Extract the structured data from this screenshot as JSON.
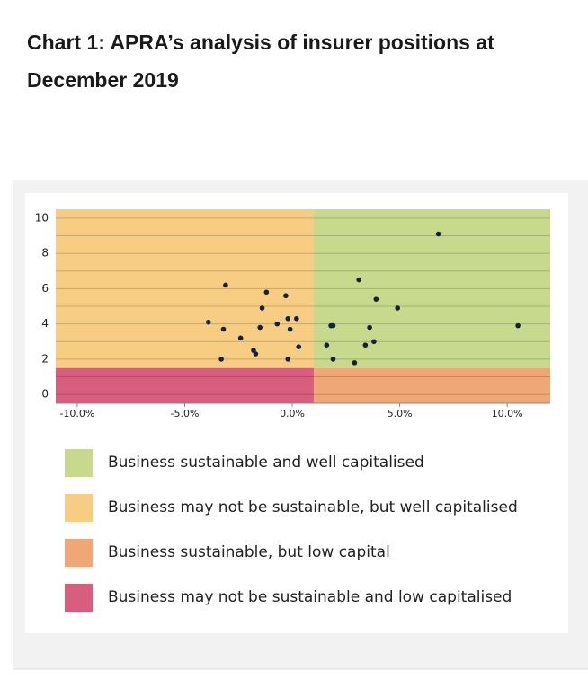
{
  "chart_data": {
    "type": "scatter",
    "title": "Chart 1: APRA’s analysis of insurer positions at December 2019",
    "x": [
      -3.1,
      -3.9,
      -3.2,
      -3.3,
      -2.4,
      -1.2,
      -1.4,
      -1.5,
      -1.8,
      -1.7,
      -0.7,
      -0.3,
      -0.2,
      -0.1,
      0.2,
      -0.2,
      0.3,
      3.1,
      3.9,
      4.9,
      1.8,
      1.9,
      3.6,
      3.8,
      3.4,
      1.6,
      1.9,
      2.9,
      6.8,
      10.5
    ],
    "values": [
      6.2,
      4.1,
      3.7,
      2.0,
      3.2,
      5.8,
      4.9,
      3.8,
      2.5,
      2.3,
      4.0,
      5.6,
      4.3,
      3.7,
      4.3,
      2.0,
      2.7,
      6.5,
      5.4,
      4.9,
      3.9,
      3.9,
      3.8,
      3.0,
      2.8,
      2.8,
      2.0,
      1.8,
      9.1,
      3.9
    ],
    "color": "#14213d",
    "xlim": [
      -11,
      12
    ],
    "ylim": [
      -0.5,
      10.5
    ],
    "xticks": [
      {
        "value": -10,
        "label": "-10.0%"
      },
      {
        "value": -5,
        "label": "-5.0%"
      },
      {
        "value": 0,
        "label": "0.0%"
      },
      {
        "value": 5,
        "label": "5.0%"
      },
      {
        "value": 10,
        "label": "10.0%"
      }
    ],
    "yticks": [
      0,
      2,
      4,
      6,
      8,
      10
    ],
    "minor_yticks": [
      1,
      3,
      5,
      7,
      9
    ],
    "grid": true,
    "x_split": 1,
    "y_split": 1.5,
    "regions": [
      {
        "name": "Business sustainable and well capitalised",
        "color": "#c6d98c",
        "x_side": "right",
        "y_side": "top"
      },
      {
        "name": "Business may not be sustainable, but well capitalised",
        "color": "#f6cd82",
        "x_side": "left",
        "y_side": "top"
      },
      {
        "name": "Business sustainable, but low capital",
        "color": "#f0a777",
        "x_side": "right",
        "y_side": "bottom"
      },
      {
        "name": "Business may not be sustainable and low capitalised",
        "color": "#d75e7f",
        "x_side": "left",
        "y_side": "bottom"
      }
    ]
  }
}
